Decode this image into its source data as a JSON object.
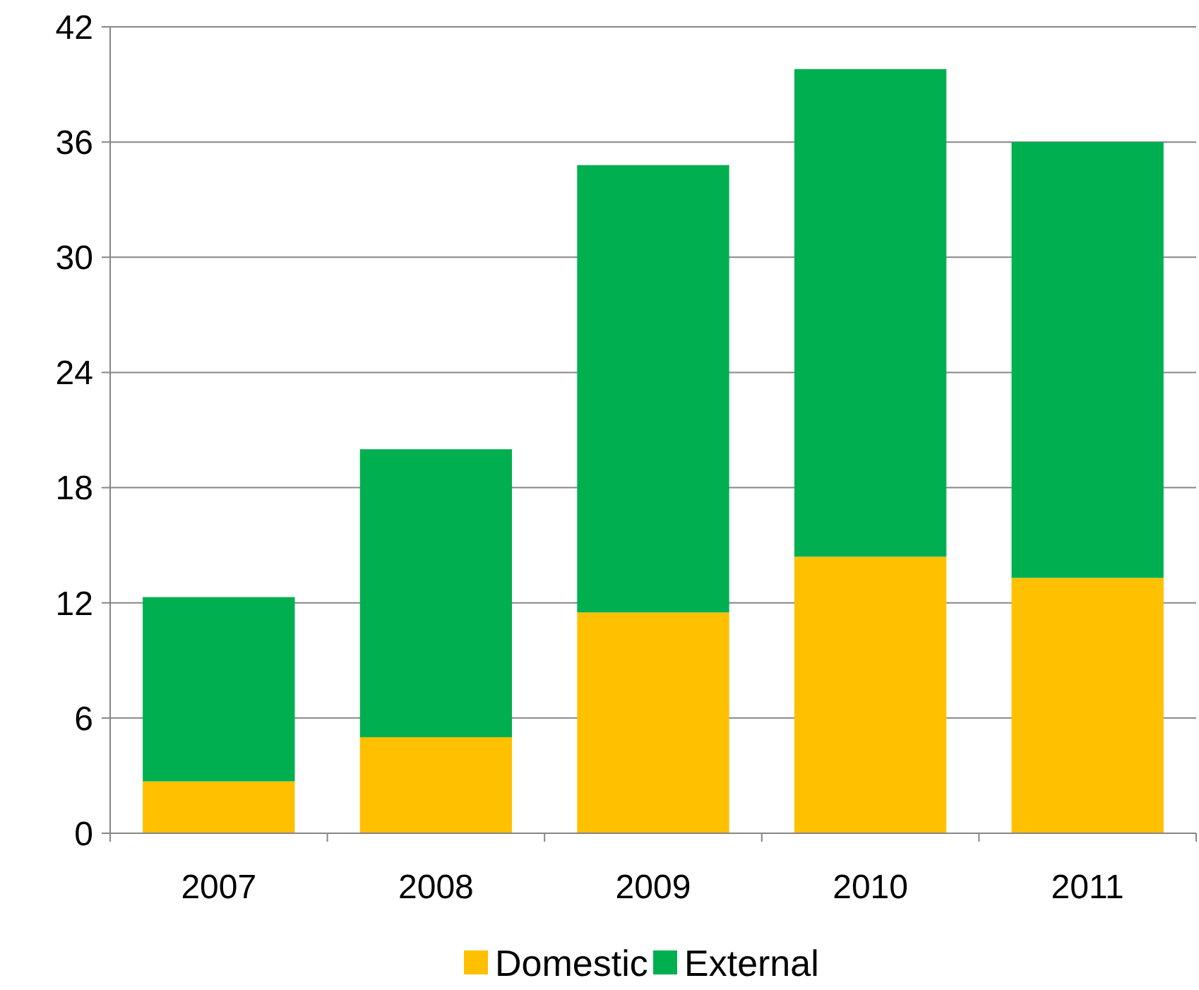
{
  "chart_data": {
    "type": "bar",
    "stacked": true,
    "categories": [
      "2007",
      "2008",
      "2009",
      "2010",
      "2011"
    ],
    "series": [
      {
        "name": "Domestic",
        "color": "#ffc000",
        "values": [
          2.7,
          5.0,
          11.5,
          14.4,
          13.3
        ]
      },
      {
        "name": "External",
        "color": "#00b050",
        "values": [
          9.6,
          15.0,
          23.3,
          25.4,
          22.7
        ]
      }
    ],
    "ylim": [
      0,
      42
    ],
    "yticks": [
      0,
      6,
      12,
      18,
      24,
      30,
      36,
      42
    ],
    "grid": "y",
    "legend": "bottom"
  }
}
